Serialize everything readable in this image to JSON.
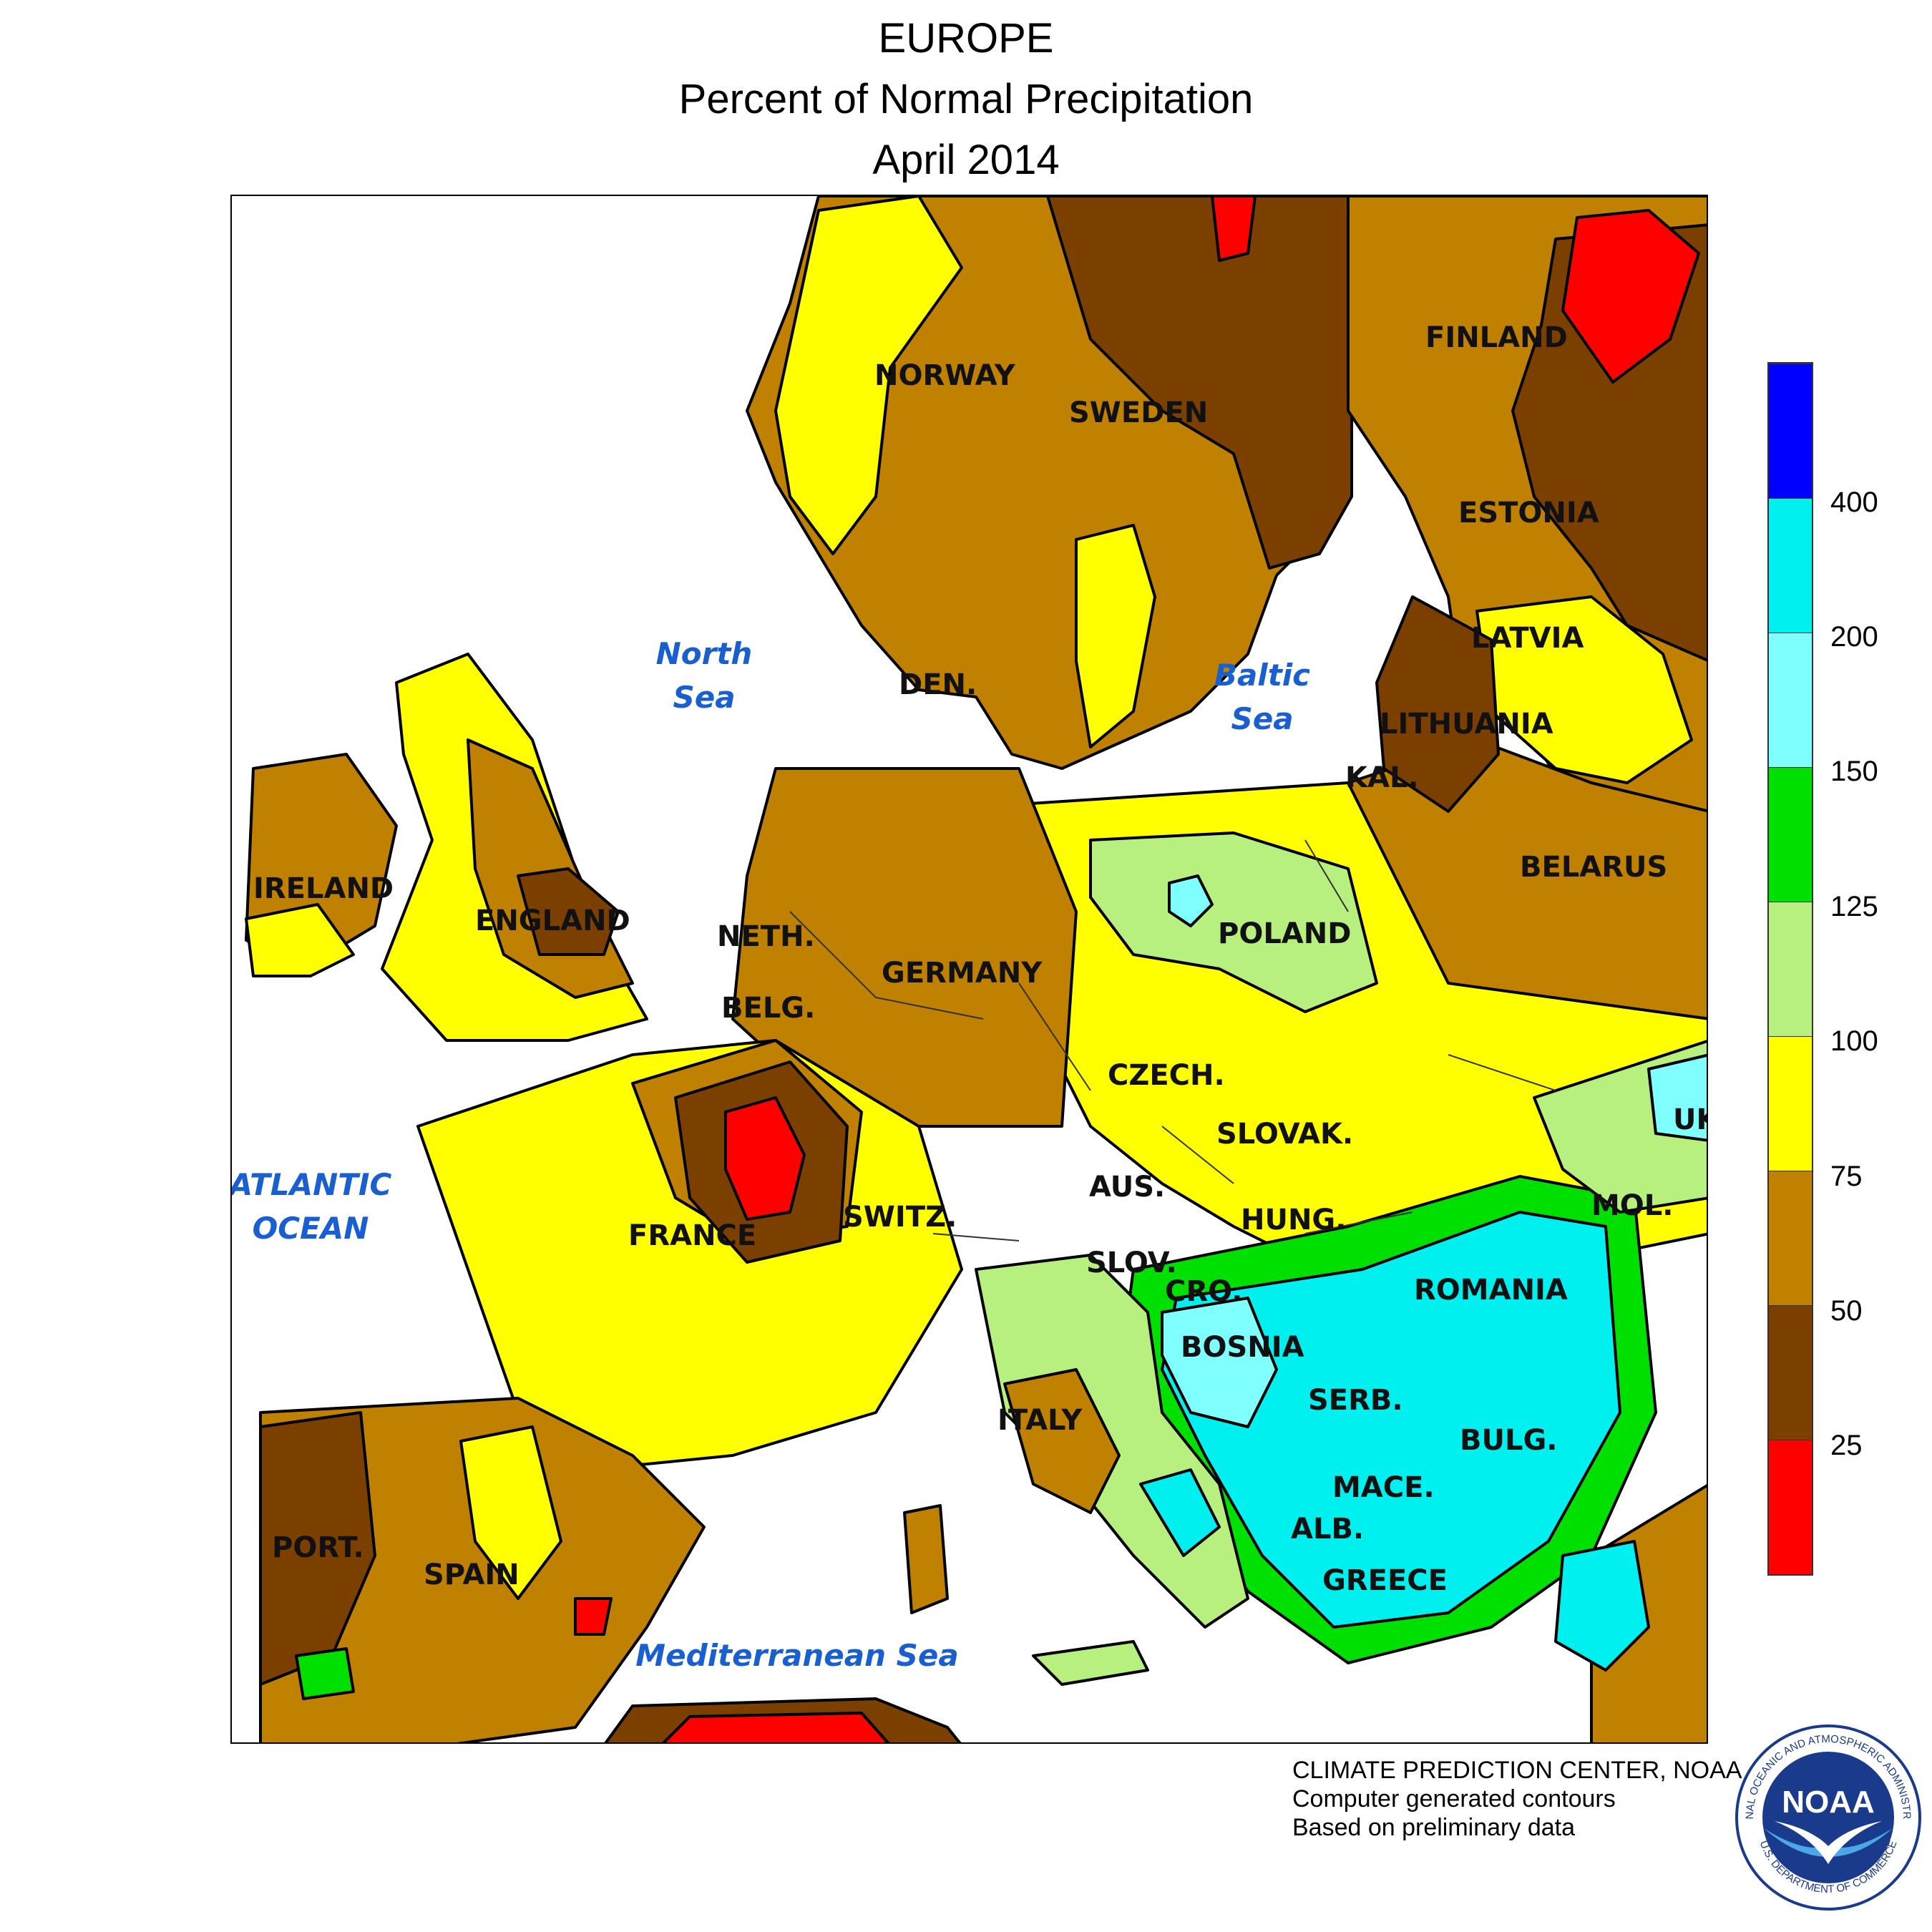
{
  "title": {
    "line1": "EUROPE",
    "line2": "Percent of Normal Precipitation",
    "line3": "April 2014"
  },
  "countries": [
    {
      "id": "norway",
      "label": "NORWAY"
    },
    {
      "id": "sweden",
      "label": "SWEDEN"
    },
    {
      "id": "finland",
      "label": "FINLAND"
    },
    {
      "id": "estonia",
      "label": "ESTONIA"
    },
    {
      "id": "latvia",
      "label": "LATVIA"
    },
    {
      "id": "lithuania",
      "label": "LITHUANIA"
    },
    {
      "id": "kal",
      "label": "KAL."
    },
    {
      "id": "belarus",
      "label": "BELARUS"
    },
    {
      "id": "den",
      "label": "DEN."
    },
    {
      "id": "ireland",
      "label": "IRELAND"
    },
    {
      "id": "england",
      "label": "ENGLAND"
    },
    {
      "id": "neth",
      "label": "NETH."
    },
    {
      "id": "belg",
      "label": "BELG."
    },
    {
      "id": "germany",
      "label": "GERMANY"
    },
    {
      "id": "poland",
      "label": "POLAND"
    },
    {
      "id": "czech",
      "label": "CZECH."
    },
    {
      "id": "slovak",
      "label": "SLOVAK."
    },
    {
      "id": "uk",
      "label": "UK"
    },
    {
      "id": "mol",
      "label": "MOL."
    },
    {
      "id": "aus",
      "label": "AUS."
    },
    {
      "id": "hung",
      "label": "HUNG."
    },
    {
      "id": "switz",
      "label": "SWITZ."
    },
    {
      "id": "france",
      "label": "FRANCE"
    },
    {
      "id": "slov",
      "label": "SLOV."
    },
    {
      "id": "cro",
      "label": "CRO."
    },
    {
      "id": "romania",
      "label": "ROMANIA"
    },
    {
      "id": "bosnia",
      "label": "BOSNIA"
    },
    {
      "id": "serb",
      "label": "SERB."
    },
    {
      "id": "bulg",
      "label": "BULG."
    },
    {
      "id": "italy",
      "label": "ITALY"
    },
    {
      "id": "mace",
      "label": "MACE."
    },
    {
      "id": "alb",
      "label": "ALB."
    },
    {
      "id": "greece",
      "label": "GREECE"
    },
    {
      "id": "port",
      "label": "PORT."
    },
    {
      "id": "spain",
      "label": "SPAIN"
    }
  ],
  "water_bodies": [
    {
      "id": "north-sea",
      "line1": "North",
      "line2": "Sea"
    },
    {
      "id": "baltic-sea",
      "line1": "Baltic",
      "line2": "Sea"
    },
    {
      "id": "atlantic-ocean",
      "line1": "ATLANTIC",
      "line2": "OCEAN"
    },
    {
      "id": "mediterranean-sea",
      "line1": "Mediterranean Sea",
      "line2": ""
    }
  ],
  "legend": {
    "bands": [
      {
        "range": "0-25",
        "color": "#ff0000"
      },
      {
        "range": "25-50",
        "color": "#7b3f00"
      },
      {
        "range": "50-75",
        "color": "#c08000"
      },
      {
        "range": "75-100",
        "color": "#ffff00"
      },
      {
        "range": "100-125",
        "color": "#b8f080"
      },
      {
        "range": "125-150",
        "color": "#00e000"
      },
      {
        "range": "150-200",
        "color": "#80ffff"
      },
      {
        "range": "200-400",
        "color": "#00f0f0"
      },
      {
        "range": ">400",
        "color": "#0000ff"
      }
    ],
    "tick_labels": [
      "25",
      "50",
      "75",
      "100",
      "125",
      "150",
      "200",
      "400"
    ]
  },
  "credits": {
    "line1": "CLIMATE PREDICTION CENTER, NOAA",
    "line2": "Computer generated contours",
    "line3": "Based on preliminary data"
  },
  "logo": {
    "name": "noaa-logo",
    "text": "NOAA",
    "ring_text_top": "NATIONAL OCEANIC AND ATMOSPHERIC ADMINISTRATION",
    "ring_text_bottom": "U.S. DEPARTMENT OF COMMERCE"
  }
}
